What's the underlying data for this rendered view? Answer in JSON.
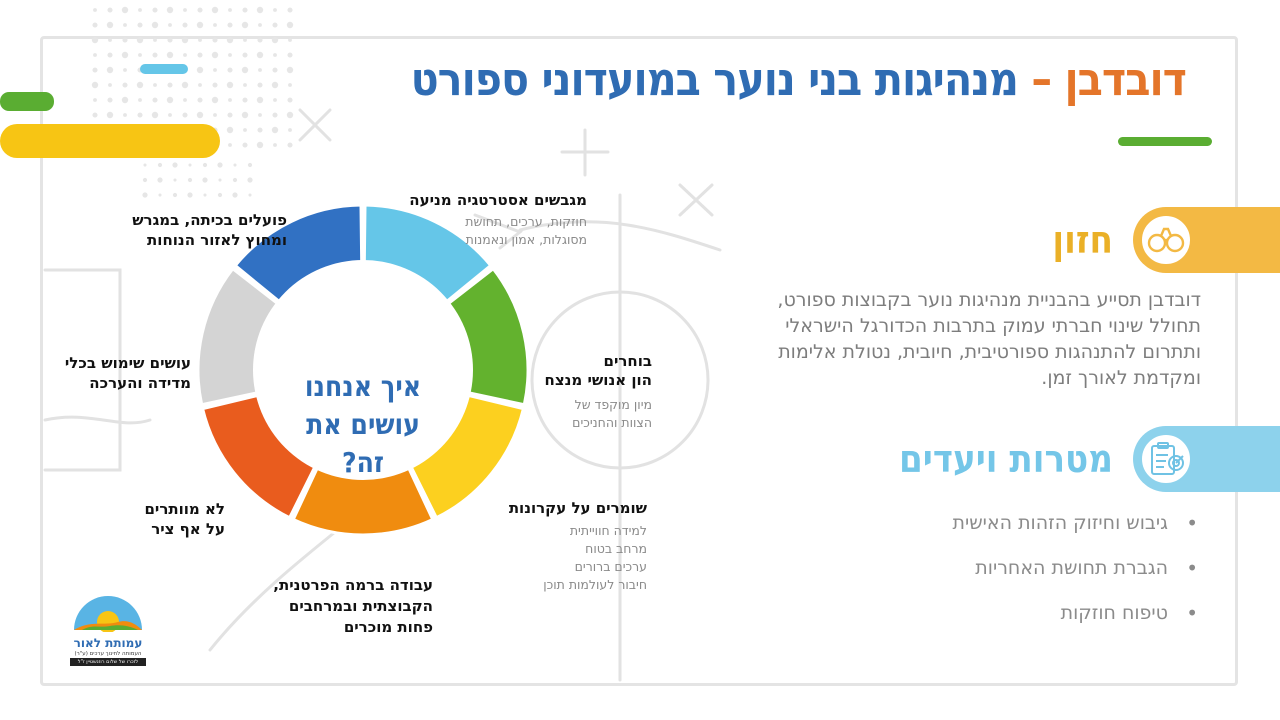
{
  "header": {
    "title_brand": "דובדבן",
    "title_dash": " – ",
    "title_rest": "מנהיגות בני נוער במועדוני ספורט"
  },
  "colors": {
    "title_blue": "#2f6cb3",
    "brand_orange": "#e4752a",
    "green": "#5aad32",
    "yellow": "#f7c514",
    "vision_band": "#f3b944",
    "goals_band": "#8dd2ec",
    "ring_light_blue": "#65c6e8",
    "ring_green": "#63b22e",
    "ring_yellow": "#fcd01f",
    "ring_orange": "#f08c0f",
    "ring_red_orange": "#e95c1e",
    "ring_gray": "#d4d4d4",
    "ring_blue": "#3171c3"
  },
  "diagram": {
    "center_line1": "איך אנחנו",
    "center_line2": "עושים את זה?",
    "segments": [
      {
        "label": "מגבשים אסטרטגיה מניעה",
        "sub": "חוזקות, ערכים, תחושת מסוגלות, אמון ונאמנות"
      },
      {
        "label_line1": "בוחרים",
        "label_line2": "הון אנושי מנצח",
        "sub": "מיון מוקפד של הצוות והחניכים"
      },
      {
        "label": "שומרים על עקרונות",
        "sub_lines": [
          "למידה חווייתית",
          "מרחב בטוח",
          "ערכים ברורים",
          "חיבור לעולמות תוכן"
        ]
      },
      {
        "label_lines": [
          "עבודה ברמה הפרטנית,",
          "הקבוצתית ובמרחבים",
          "פחות מוכרים"
        ]
      },
      {
        "label_lines": [
          "לא מוותרים",
          "על אף ציר"
        ]
      },
      {
        "label_lines": [
          "עושים שימוש בכלי",
          "מדידה והערכה"
        ]
      },
      {
        "label_lines": [
          "פועלים בכיתה, במגרש",
          "ומחוץ לאזור הנוחות"
        ]
      }
    ]
  },
  "vision": {
    "title": "חזון",
    "icon": "binoculars-icon",
    "text": "דובדבן תסייע בהבניית מנהיגות נוער בקבוצות ספורט, תחולל שינוי חברתי עמוק בתרבות הכדורגל הישראלי ותתרום להתנהגות ספורטיבית, חיובית, נטולת אלימות ומקדמת לאורך זמן."
  },
  "goals": {
    "title": "מטרות ויעדים",
    "icon": "clipboard-target-icon",
    "items": [
      "גיבוש וחיזוק הזהות האישית",
      "הגברת תחושת האחריות",
      "טיפוח חוזקות"
    ]
  },
  "logo": {
    "name": "עמותת לאור",
    "tagline": "העמותה לחינוך ערכים (ע\"ר)",
    "subline": "לזכרו של שלום רוזנשטיין ז\"ל"
  }
}
